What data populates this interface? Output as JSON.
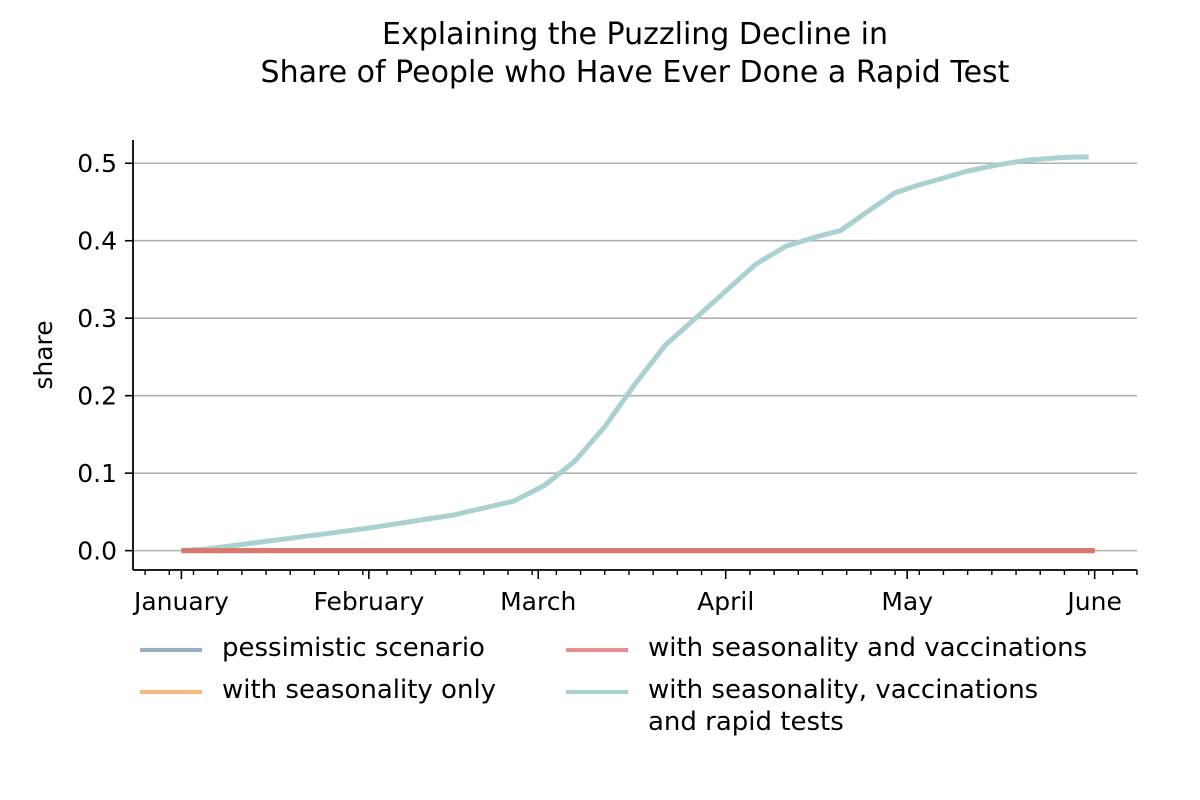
{
  "chart_data": {
    "type": "line",
    "title": [
      "Explaining the Puzzling Decline in",
      "Share of People who Have Ever Done a Rapid Test"
    ],
    "xlabel": "",
    "ylabel": "share",
    "x_ticks": [
      "January",
      "February",
      "March",
      "April",
      "May",
      "June"
    ],
    "y_ticks": [
      "0.0",
      "0.1",
      "0.2",
      "0.3",
      "0.4",
      "0.5"
    ],
    "ylim": [
      -0.025,
      0.53
    ],
    "y_grid": true,
    "legend_placement": "bottom",
    "x_days_range": [
      0,
      151
    ],
    "series": [
      {
        "name": "pessimistic scenario",
        "color": "#97aec4",
        "x_days": [
          0,
          151
        ],
        "values": [
          0.0,
          0.0
        ]
      },
      {
        "name": "with seasonality only",
        "color": "#f5bb7b",
        "x_days": [
          0,
          151
        ],
        "values": [
          0.0,
          0.0
        ]
      },
      {
        "name": "with seasonality and vaccinations",
        "color": "#e58e8e",
        "x_days": [
          0,
          151
        ],
        "values": [
          0.0,
          0.0
        ]
      },
      {
        "name": "with seasonality, vaccinations\nand rapid tests",
        "color": "#a8d1cf",
        "x_days": [
          0,
          4,
          8,
          12,
          16,
          20,
          25,
          30,
          35,
          40,
          45,
          50,
          55,
          60,
          65,
          70,
          75,
          80,
          85,
          90,
          95,
          100,
          105,
          109,
          113,
          118,
          122,
          126,
          130,
          135,
          140,
          145,
          148,
          150
        ],
        "values": [
          0.0,
          0.002,
          0.006,
          0.01,
          0.014,
          0.018,
          0.023,
          0.028,
          0.034,
          0.04,
          0.046,
          0.055,
          0.064,
          0.084,
          0.115,
          0.16,
          0.215,
          0.265,
          0.3,
          0.335,
          0.37,
          0.393,
          0.405,
          0.413,
          0.435,
          0.462,
          0.472,
          0.481,
          0.49,
          0.498,
          0.504,
          0.507,
          0.508,
          0.508
        ]
      }
    ],
    "overlay_line": {
      "color": "#d9776a",
      "value": 0.0
    }
  }
}
